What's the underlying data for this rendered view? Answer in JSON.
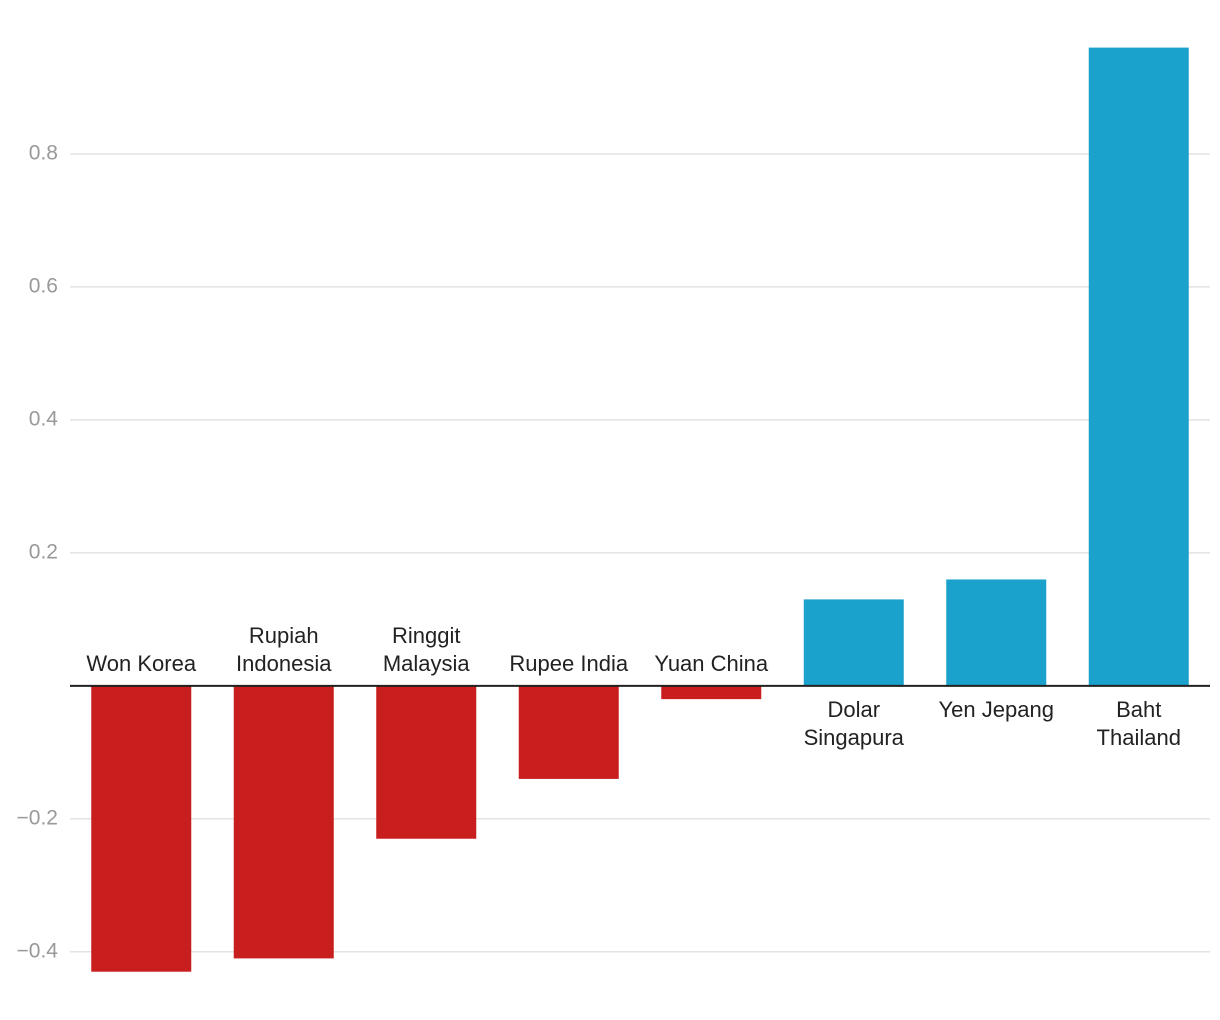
{
  "chart_data": {
    "type": "bar",
    "categories": [
      "Won Korea",
      "Rupiah\nIndonesia",
      "Ringgit\nMalaysia",
      "Rupee India",
      "Yuan China",
      "Dolar\nSingapura",
      "Yen Jepang",
      "Baht\nThailand"
    ],
    "values": [
      -0.43,
      -0.41,
      -0.23,
      -0.14,
      -0.02,
      0.13,
      0.16,
      0.96
    ],
    "colors": [
      "#c81e1e",
      "#c81e1e",
      "#c81e1e",
      "#c81e1e",
      "#c81e1e",
      "#1aa1cc",
      "#1aa1cc",
      "#1aa1cc"
    ],
    "ylim": [
      -0.45,
      1.0
    ],
    "yticks": [
      {
        "value": -0.4,
        "label": "−0.4"
      },
      {
        "value": -0.2,
        "label": "−0.2"
      },
      0.2,
      0.4,
      0.6,
      0.8
    ],
    "grid": true
  }
}
